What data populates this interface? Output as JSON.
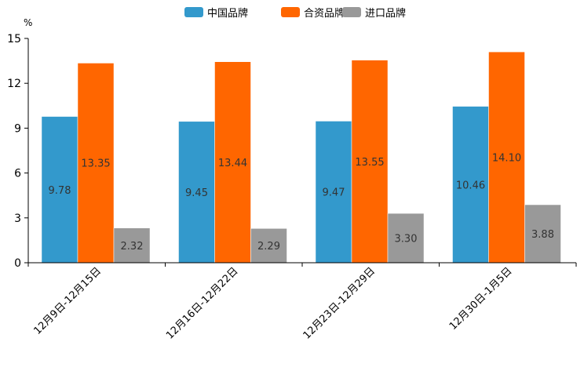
{
  "chart_data": {
    "type": "bar",
    "title": "",
    "xlabel": "",
    "ylabel": "%",
    "ylim": [
      0,
      15
    ],
    "yticks": [
      0,
      3,
      6,
      9,
      12,
      15
    ],
    "grid": false,
    "legend_position": "top-center",
    "categories": [
      "12月9日-12月15日",
      "12月16日-12月22日",
      "12月23日-12月29日",
      "12月30日-1月5日"
    ],
    "series": [
      {
        "name": "中国品牌",
        "color": "#3399cc",
        "values": [
          9.78,
          9.45,
          9.47,
          10.46
        ],
        "labels": [
          "9.78",
          "9.45",
          "9.47",
          "10.46"
        ]
      },
      {
        "name": "合资品牌",
        "color": "#ff6600",
        "values": [
          13.35,
          13.44,
          13.55,
          14.1
        ],
        "labels": [
          "13.35",
          "13.44",
          "13.55",
          "14.10"
        ]
      },
      {
        "name": "进口品牌",
        "color": "#999999",
        "values": [
          2.32,
          2.29,
          3.3,
          3.88
        ],
        "labels": [
          "2.32",
          "2.29",
          "3.30",
          "3.88"
        ]
      }
    ]
  }
}
